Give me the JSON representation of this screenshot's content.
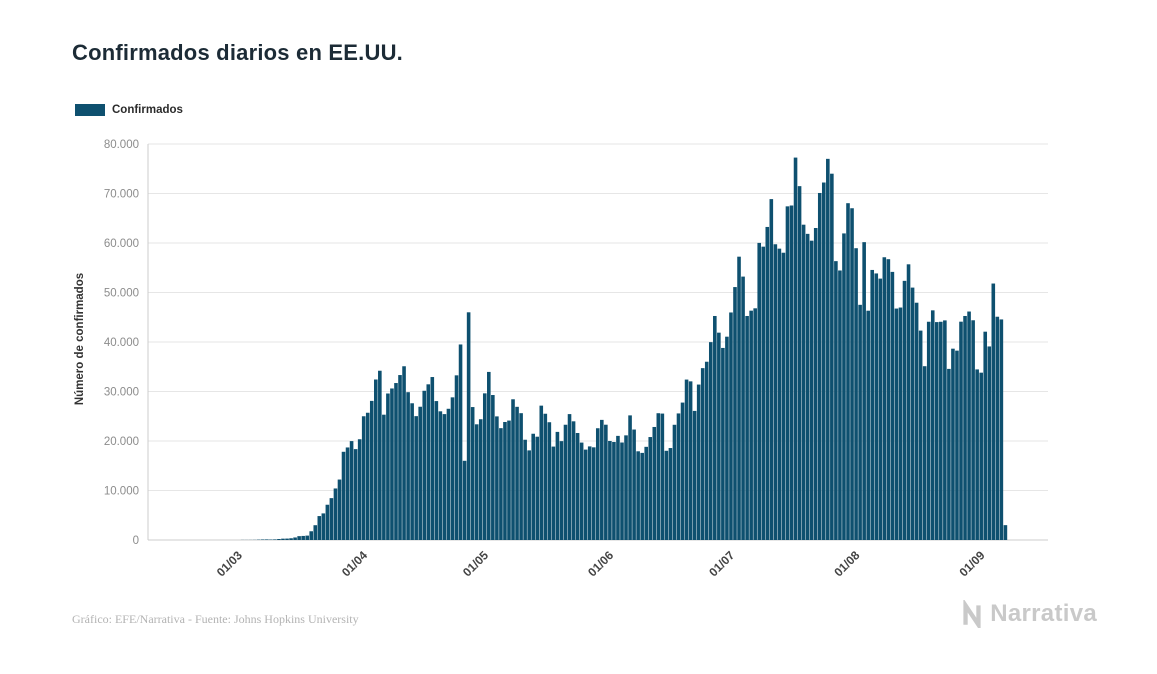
{
  "page": {
    "background": "#ffffff"
  },
  "header": {
    "title": "Confirmados diarios en EE.UU."
  },
  "legend": {
    "label": "Confirmados",
    "swatch_color": "#0e506f"
  },
  "footer": {
    "credit": "Gráfico: EFE/Narrativa - Fuente: Johns Hopkins University",
    "logo_text": "Narrativa"
  },
  "chart_data": {
    "type": "bar",
    "title": "Confirmados diarios en EE.UU.",
    "series_name": "Confirmados",
    "xlabel": "",
    "ylabel": "Número de confirmados",
    "ylim": [
      0,
      80000
    ],
    "grid": true,
    "legend_position": "top-left",
    "bar_color": "#0e506f",
    "grid_color": "#e6e6e6",
    "axis_color": "#cccccc",
    "y_tick_labels": [
      "0",
      "10.000",
      "20.000",
      "30.000",
      "40.000",
      "50.000",
      "60.000",
      "70.000",
      "80.000"
    ],
    "y_tick_values": [
      0,
      10000,
      20000,
      30000,
      40000,
      50000,
      60000,
      70000,
      80000
    ],
    "x_tick_labels": [
      "01/03",
      "01/04",
      "01/05",
      "01/06",
      "01/07",
      "01/08",
      "01/09"
    ],
    "x_tick_day_indices": [
      23,
      54,
      84,
      115,
      145,
      176,
      207
    ],
    "start_date": "07/02/2020",
    "values": [
      0,
      0,
      0,
      0,
      0,
      1,
      0,
      0,
      0,
      0,
      0,
      0,
      0,
      0,
      1,
      0,
      0,
      6,
      1,
      3,
      0,
      6,
      8,
      25,
      20,
      24,
      34,
      73,
      108,
      120,
      95,
      121,
      200,
      271,
      287,
      351,
      511,
      777,
      823,
      887,
      1766,
      2988,
      4835,
      5374,
      7123,
      8459,
      10410,
      12212,
      17821,
      18695,
      19979,
      18360,
      20355,
      24998,
      25707,
      28103,
      32425,
      34196,
      25316,
      29595,
      30613,
      31709,
      33323,
      35098,
      29861,
      27620,
      25023,
      26922,
      30148,
      31451,
      32922,
      28065,
      25995,
      25434,
      26509,
      28819,
      33264,
      39500,
      16000,
      46000,
      26857,
      23371,
      24396,
      29625,
      33955,
      29288,
      24972,
      22593,
      23841,
      24128,
      28430,
      26906,
      25621,
      20254,
      18106,
      21467,
      20869,
      27143,
      25508,
      23792,
      18873,
      21841,
      19970,
      23285,
      25434,
      23976,
      21614,
      19680,
      18263,
      18910,
      18721,
      22577,
      24266,
      23290,
      20007,
      19807,
      21034,
      19699,
      21140,
      25176,
      22317,
      17919,
      17598,
      18822,
      20801,
      22834,
      25612,
      25540,
      18022,
      18577,
      23277,
      25570,
      27762,
      32411,
      32048,
      26079,
      31402,
      34720,
      36015,
      39972,
      45255,
      41887,
      38800,
      41075,
      45965,
      51097,
      57236,
      53213,
      45254,
      46329,
      46807,
      60021,
      59260,
      63243,
      68867,
      59747,
      58858,
      58034,
      67404,
      67574,
      77255,
      71484,
      63698,
      61847,
      60469,
      63028,
      70106,
      72219,
      77000,
      74000,
      56336,
      54448,
      61935,
      68042,
      67023,
      58947,
      47511,
      60171,
      46321,
      54556,
      53851,
      52807,
      57120,
      56729,
      54164,
      46754,
      46961,
      52354,
      55695,
      50989,
      47936,
      42303,
      35112,
      44091,
      46393,
      44023,
      44087,
      44366,
      34567,
      38651,
      38254,
      44106,
      45257,
      46156,
      44389,
      34462,
      33805,
      42084,
      39102,
      51813,
      45106,
      44560,
      3000
    ]
  }
}
